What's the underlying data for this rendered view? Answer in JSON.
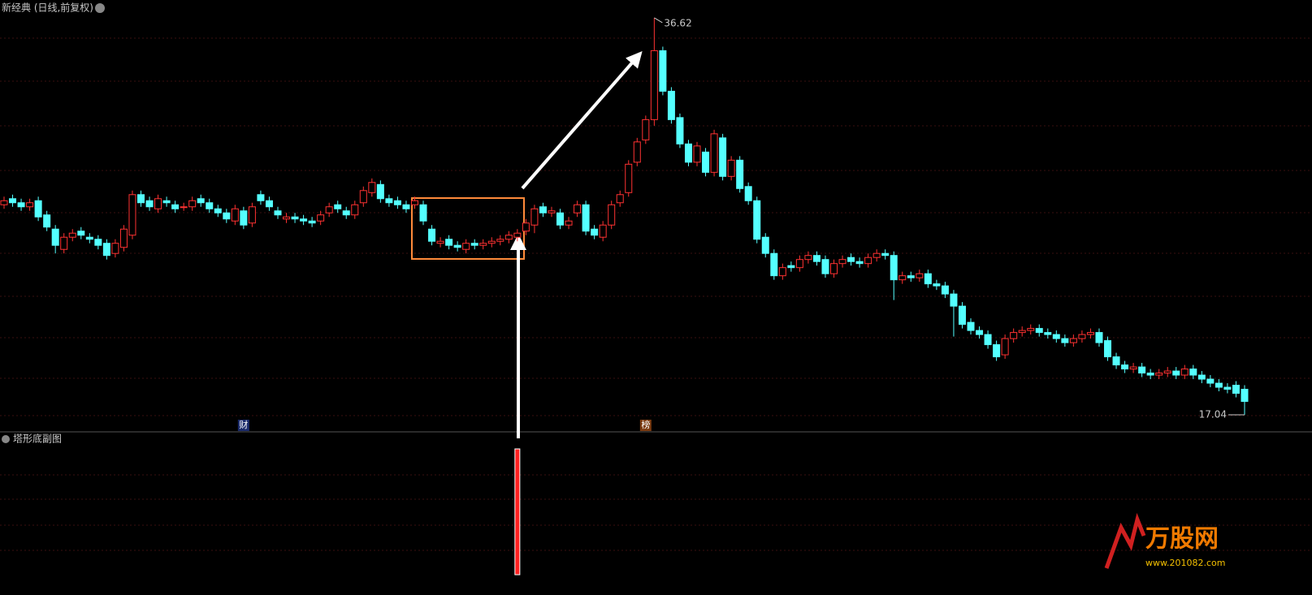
{
  "chart_data": {
    "type": "candlestick",
    "title": "新经典 (日线,前复权)",
    "ylim": [
      16.2,
      37.5
    ],
    "up_color": "#ff3232",
    "down_color": "#54ffff",
    "open": [
      27.4,
      27.7,
      27.5,
      27.3,
      27.6,
      26.9,
      26.2,
      25.2,
      25.8,
      26.1,
      25.8,
      25.7,
      25.5,
      25.0,
      25.3,
      25.9,
      27.9,
      27.6,
      27.2,
      27.6,
      27.4,
      27.3,
      27.3,
      27.7,
      27.5,
      27.2,
      27.0,
      26.6,
      27.1,
      26.5,
      27.9,
      27.6,
      27.1,
      26.7,
      26.8,
      26.7,
      26.6,
      26.6,
      27.0,
      27.4,
      27.1,
      26.9,
      27.5,
      28.0,
      28.4,
      27.7,
      27.6,
      27.4,
      27.4,
      27.4,
      26.2,
      25.5,
      25.7,
      25.4,
      25.2,
      25.5,
      25.4,
      25.5,
      25.6,
      25.7,
      25.8,
      26.1,
      26.4,
      27.3,
      27.0,
      27.0,
      26.4,
      27.0,
      27.4,
      26.2,
      25.8,
      26.4,
      27.5,
      28.0,
      29.5,
      30.6,
      31.6,
      35.0,
      33.0,
      31.7,
      30.4,
      29.5,
      30.0,
      29.0,
      30.7,
      28.8,
      29.6,
      28.3,
      27.6,
      25.8,
      25.0,
      23.9,
      24.4,
      24.3,
      24.7,
      24.9,
      24.7,
      24.0,
      24.5,
      24.8,
      24.6,
      24.5,
      24.8,
      25.0,
      24.9,
      23.7,
      23.9,
      23.8,
      24.0,
      23.5,
      23.4,
      23.0,
      22.4,
      21.6,
      21.2,
      21.0,
      20.5,
      20.0,
      20.8,
      21.1,
      21.2,
      21.3,
      21.1,
      21.0,
      20.8,
      20.6,
      20.8,
      21.0,
      21.1,
      20.7,
      19.9,
      19.5,
      19.3,
      19.4,
      19.1,
      19.0,
      19.1,
      19.2,
      19.0,
      19.3,
      19.0,
      18.8,
      18.6,
      18.4,
      18.5,
      18.3
    ],
    "high": [
      27.8,
      27.9,
      27.7,
      27.7,
      27.8,
      27.1,
      26.4,
      26.0,
      26.2,
      26.3,
      26.0,
      25.9,
      25.7,
      25.7,
      26.4,
      28.1,
      28.1,
      27.8,
      27.9,
      27.8,
      27.6,
      27.5,
      27.8,
      27.9,
      27.7,
      27.4,
      27.2,
      27.4,
      27.3,
      27.5,
      28.1,
      27.8,
      27.3,
      27.0,
      27.0,
      26.9,
      26.8,
      27.1,
      27.5,
      27.6,
      27.3,
      27.6,
      28.3,
      28.7,
      28.6,
      27.9,
      27.8,
      27.6,
      27.8,
      27.6,
      26.4,
      25.8,
      25.9,
      25.6,
      25.7,
      25.7,
      25.7,
      25.8,
      25.9,
      26.1,
      26.2,
      26.7,
      27.4,
      27.5,
      27.3,
      27.2,
      26.8,
      27.6,
      27.6,
      26.4,
      26.6,
      27.6,
      28.1,
      29.6,
      30.7,
      31.8,
      36.62,
      35.2,
      33.2,
      31.9,
      30.6,
      30.5,
      30.2,
      31.1,
      30.9,
      29.8,
      29.8,
      28.5,
      27.8,
      26.0,
      25.2,
      24.5,
      24.6,
      24.9,
      25.1,
      25.1,
      24.9,
      24.7,
      24.9,
      25.0,
      24.8,
      25.0,
      25.2,
      25.2,
      25.1,
      24.1,
      24.1,
      24.2,
      24.2,
      23.7,
      23.6,
      23.2,
      22.6,
      21.8,
      21.4,
      21.2,
      20.7,
      21.0,
      21.3,
      21.4,
      21.5,
      21.5,
      21.3,
      21.2,
      21.0,
      21.0,
      21.2,
      21.3,
      21.3,
      20.9,
      20.1,
      19.7,
      19.6,
      19.6,
      19.3,
      19.3,
      19.4,
      19.4,
      19.5,
      19.5,
      19.2,
      19.0,
      18.8,
      18.6,
      18.7,
      18.5
    ],
    "low": [
      27.2,
      27.3,
      27.1,
      27.1,
      26.6,
      26.1,
      25.0,
      25.0,
      25.6,
      25.7,
      25.5,
      25.2,
      24.7,
      24.8,
      25.1,
      25.7,
      27.3,
      27.1,
      27.0,
      27.3,
      27.0,
      27.1,
      27.1,
      27.3,
      27.0,
      26.8,
      26.5,
      26.4,
      26.2,
      26.3,
      27.4,
      27.1,
      26.7,
      26.5,
      26.5,
      26.4,
      26.3,
      26.4,
      26.8,
      27.0,
      26.7,
      26.7,
      27.3,
      27.8,
      27.5,
      27.3,
      27.2,
      27.0,
      27.2,
      26.4,
      25.4,
      25.3,
      25.2,
      25.1,
      25.0,
      25.2,
      25.2,
      25.3,
      25.4,
      25.5,
      25.6,
      25.9,
      26.0,
      26.8,
      26.8,
      26.2,
      26.2,
      26.8,
      25.9,
      25.7,
      25.6,
      26.2,
      27.3,
      27.8,
      29.3,
      30.4,
      31.3,
      32.8,
      31.4,
      30.2,
      29.3,
      29.3,
      28.8,
      28.8,
      28.6,
      28.6,
      28.0,
      27.4,
      25.5,
      24.8,
      23.7,
      23.7,
      24.1,
      24.1,
      24.5,
      24.4,
      23.8,
      23.8,
      24.3,
      24.4,
      24.3,
      24.3,
      24.6,
      24.7,
      22.7,
      23.5,
      23.6,
      23.6,
      23.3,
      23.2,
      22.8,
      20.9,
      21.3,
      21.0,
      20.8,
      20.3,
      19.7,
      19.8,
      20.6,
      20.9,
      21.0,
      20.9,
      20.8,
      20.6,
      20.4,
      20.4,
      20.6,
      20.8,
      20.4,
      19.7,
      19.3,
      19.1,
      19.1,
      18.9,
      18.8,
      18.8,
      18.9,
      18.8,
      18.8,
      18.8,
      18.6,
      18.4,
      18.2,
      18.1,
      17.9,
      17.04
    ],
    "close": [
      27.6,
      27.5,
      27.3,
      27.5,
      26.8,
      26.3,
      25.4,
      25.8,
      26.0,
      25.9,
      25.7,
      25.4,
      24.9,
      25.5,
      26.2,
      27.9,
      27.5,
      27.3,
      27.7,
      27.5,
      27.2,
      27.3,
      27.6,
      27.5,
      27.2,
      27.0,
      26.7,
      27.2,
      26.4,
      27.3,
      27.6,
      27.3,
      26.9,
      26.8,
      26.7,
      26.6,
      26.5,
      26.9,
      27.3,
      27.2,
      26.9,
      27.4,
      28.1,
      28.5,
      27.7,
      27.5,
      27.4,
      27.2,
      27.6,
      26.6,
      25.6,
      25.6,
      25.4,
      25.3,
      25.5,
      25.4,
      25.5,
      25.6,
      25.7,
      25.9,
      26.0,
      26.5,
      27.2,
      27.0,
      27.1,
      26.4,
      26.6,
      27.4,
      26.1,
      25.9,
      26.4,
      27.4,
      27.9,
      29.4,
      30.5,
      31.6,
      35.0,
      33.0,
      31.6,
      30.4,
      29.5,
      30.3,
      29.0,
      30.9,
      28.8,
      29.6,
      28.2,
      27.6,
      25.7,
      25.0,
      23.9,
      24.3,
      24.3,
      24.7,
      24.9,
      24.6,
      24.0,
      24.5,
      24.7,
      24.6,
      24.5,
      24.8,
      25.0,
      24.9,
      23.7,
      23.9,
      23.8,
      24.0,
      23.5,
      23.4,
      23.0,
      22.4,
      21.5,
      21.2,
      21.0,
      20.5,
      19.9,
      20.8,
      21.1,
      21.2,
      21.3,
      21.1,
      21.0,
      20.8,
      20.6,
      20.8,
      21.0,
      21.1,
      20.6,
      19.9,
      19.5,
      19.3,
      19.4,
      19.1,
      19.0,
      19.1,
      19.2,
      19.0,
      19.3,
      19.0,
      18.8,
      18.6,
      18.4,
      18.3,
      18.1,
      17.7
    ],
    "label_high": 36.62,
    "label_low": 17.04,
    "markers": [
      {
        "text": "财",
        "index": 28
      },
      {
        "text": "榜",
        "index": 75
      }
    ],
    "indicator": {
      "title": "塔形底副图",
      "color": "#ff2020",
      "ylim": [
        0,
        1
      ],
      "values": [
        0,
        0,
        0,
        0,
        0,
        0,
        0,
        0,
        0,
        0,
        0,
        0,
        0,
        0,
        0,
        0,
        0,
        0,
        0,
        0,
        0,
        0,
        0,
        0,
        0,
        0,
        0,
        0,
        0,
        0,
        0,
        0,
        0,
        0,
        0,
        0,
        0,
        0,
        0,
        0,
        0,
        0,
        0,
        0,
        0,
        0,
        0,
        0,
        0,
        0,
        0,
        0,
        0,
        0,
        0,
        0,
        0,
        0,
        0,
        0,
        1,
        0,
        0,
        0,
        0,
        0,
        0,
        0,
        0,
        0,
        0,
        0,
        0,
        0,
        0,
        0,
        0,
        0,
        0,
        0,
        0,
        0,
        0,
        0,
        0,
        0,
        0,
        0,
        0,
        0,
        0,
        0,
        0,
        0,
        0,
        0,
        0,
        0,
        0,
        0,
        0,
        0,
        0,
        0,
        0,
        0,
        0,
        0,
        0,
        0,
        0,
        0,
        0,
        0,
        0,
        0,
        0,
        0,
        0,
        0,
        0,
        0,
        0,
        0,
        0,
        0,
        0,
        0,
        0,
        0,
        0,
        0,
        0,
        0,
        0,
        0,
        0,
        0,
        0,
        0,
        0,
        0,
        0,
        0,
        0,
        0
      ]
    },
    "watermark": {
      "name": "万股网",
      "url": "www.201082.com"
    }
  }
}
